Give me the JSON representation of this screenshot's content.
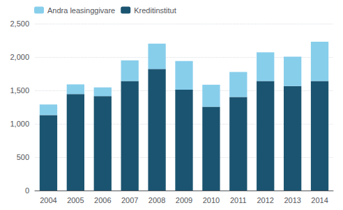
{
  "chart_data": {
    "type": "bar",
    "stacked": true,
    "categories": [
      "2004",
      "2005",
      "2006",
      "2007",
      "2008",
      "2009",
      "2010",
      "2011",
      "2012",
      "2013",
      "2014"
    ],
    "series": [
      {
        "name": "Kreditinstitut",
        "color": "#1b5470",
        "values": [
          1130,
          1445,
          1415,
          1640,
          1820,
          1510,
          1255,
          1400,
          1640,
          1565,
          1640
        ]
      },
      {
        "name": "Andra leasinggivare",
        "color": "#87ceeb",
        "values": [
          160,
          145,
          130,
          310,
          380,
          430,
          330,
          375,
          430,
          440,
          590
        ]
      }
    ],
    "ylim": [
      0,
      2500
    ],
    "yticks": [
      0,
      500,
      1000,
      1500,
      2000,
      2500
    ],
    "grid": true,
    "legend": "upper left"
  }
}
